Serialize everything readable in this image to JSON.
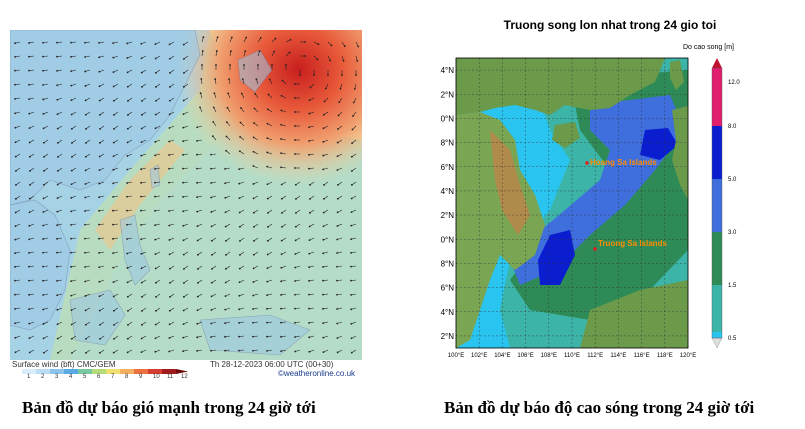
{
  "wind_map": {
    "footer_left": "Surface wind (bft)  CMC/GEM",
    "footer_right": "Th 28-12-2023 06:00 UTC (00+30)",
    "credit": "©weatheronline.co.uk",
    "scale_ticks": [
      "1",
      "2",
      "3",
      "4",
      "5",
      "6",
      "7",
      "8",
      "9",
      "10",
      "11",
      "12"
    ],
    "caption": "Bản đồ dự báo gió mạnh trong 24 giờ tới"
  },
  "wave_map": {
    "title": "Truong song lon nhat trong 24 gio toi",
    "legend_title": "Do cao song [m]",
    "legend_ticks": [
      "12.0",
      "8.0",
      "5.0",
      "3.0",
      "1.5",
      "0.5"
    ],
    "latitudes": [
      "24°N",
      "22°N",
      "20°N",
      "18°N",
      "16°N",
      "14°N",
      "12°N",
      "10°N",
      "8°N",
      "6°N",
      "4°N",
      "2°N"
    ],
    "longitudes": [
      "100°E",
      "102°E",
      "104°E",
      "106°E",
      "108°E",
      "110°E",
      "112°E",
      "114°E",
      "116°E",
      "118°E",
      "120°E"
    ],
    "islands": [
      {
        "name": "Hoang Sa Islands"
      },
      {
        "name": "Truong Sa Islands"
      }
    ],
    "caption": "Bản đồ dự báo độ cao sóng trong 24 giờ tới"
  },
  "colors": {
    "wave_0_5": "#29c4f0",
    "wave_1_5": "#3cb4a8",
    "wave_3_0": "#2e8b57",
    "wave_5_0": "#3f6fdc",
    "wave_8_0": "#0a1ed0",
    "wave_12": "#e0206e",
    "land": "#6a9a4a",
    "island_label": "#ff8c00"
  }
}
